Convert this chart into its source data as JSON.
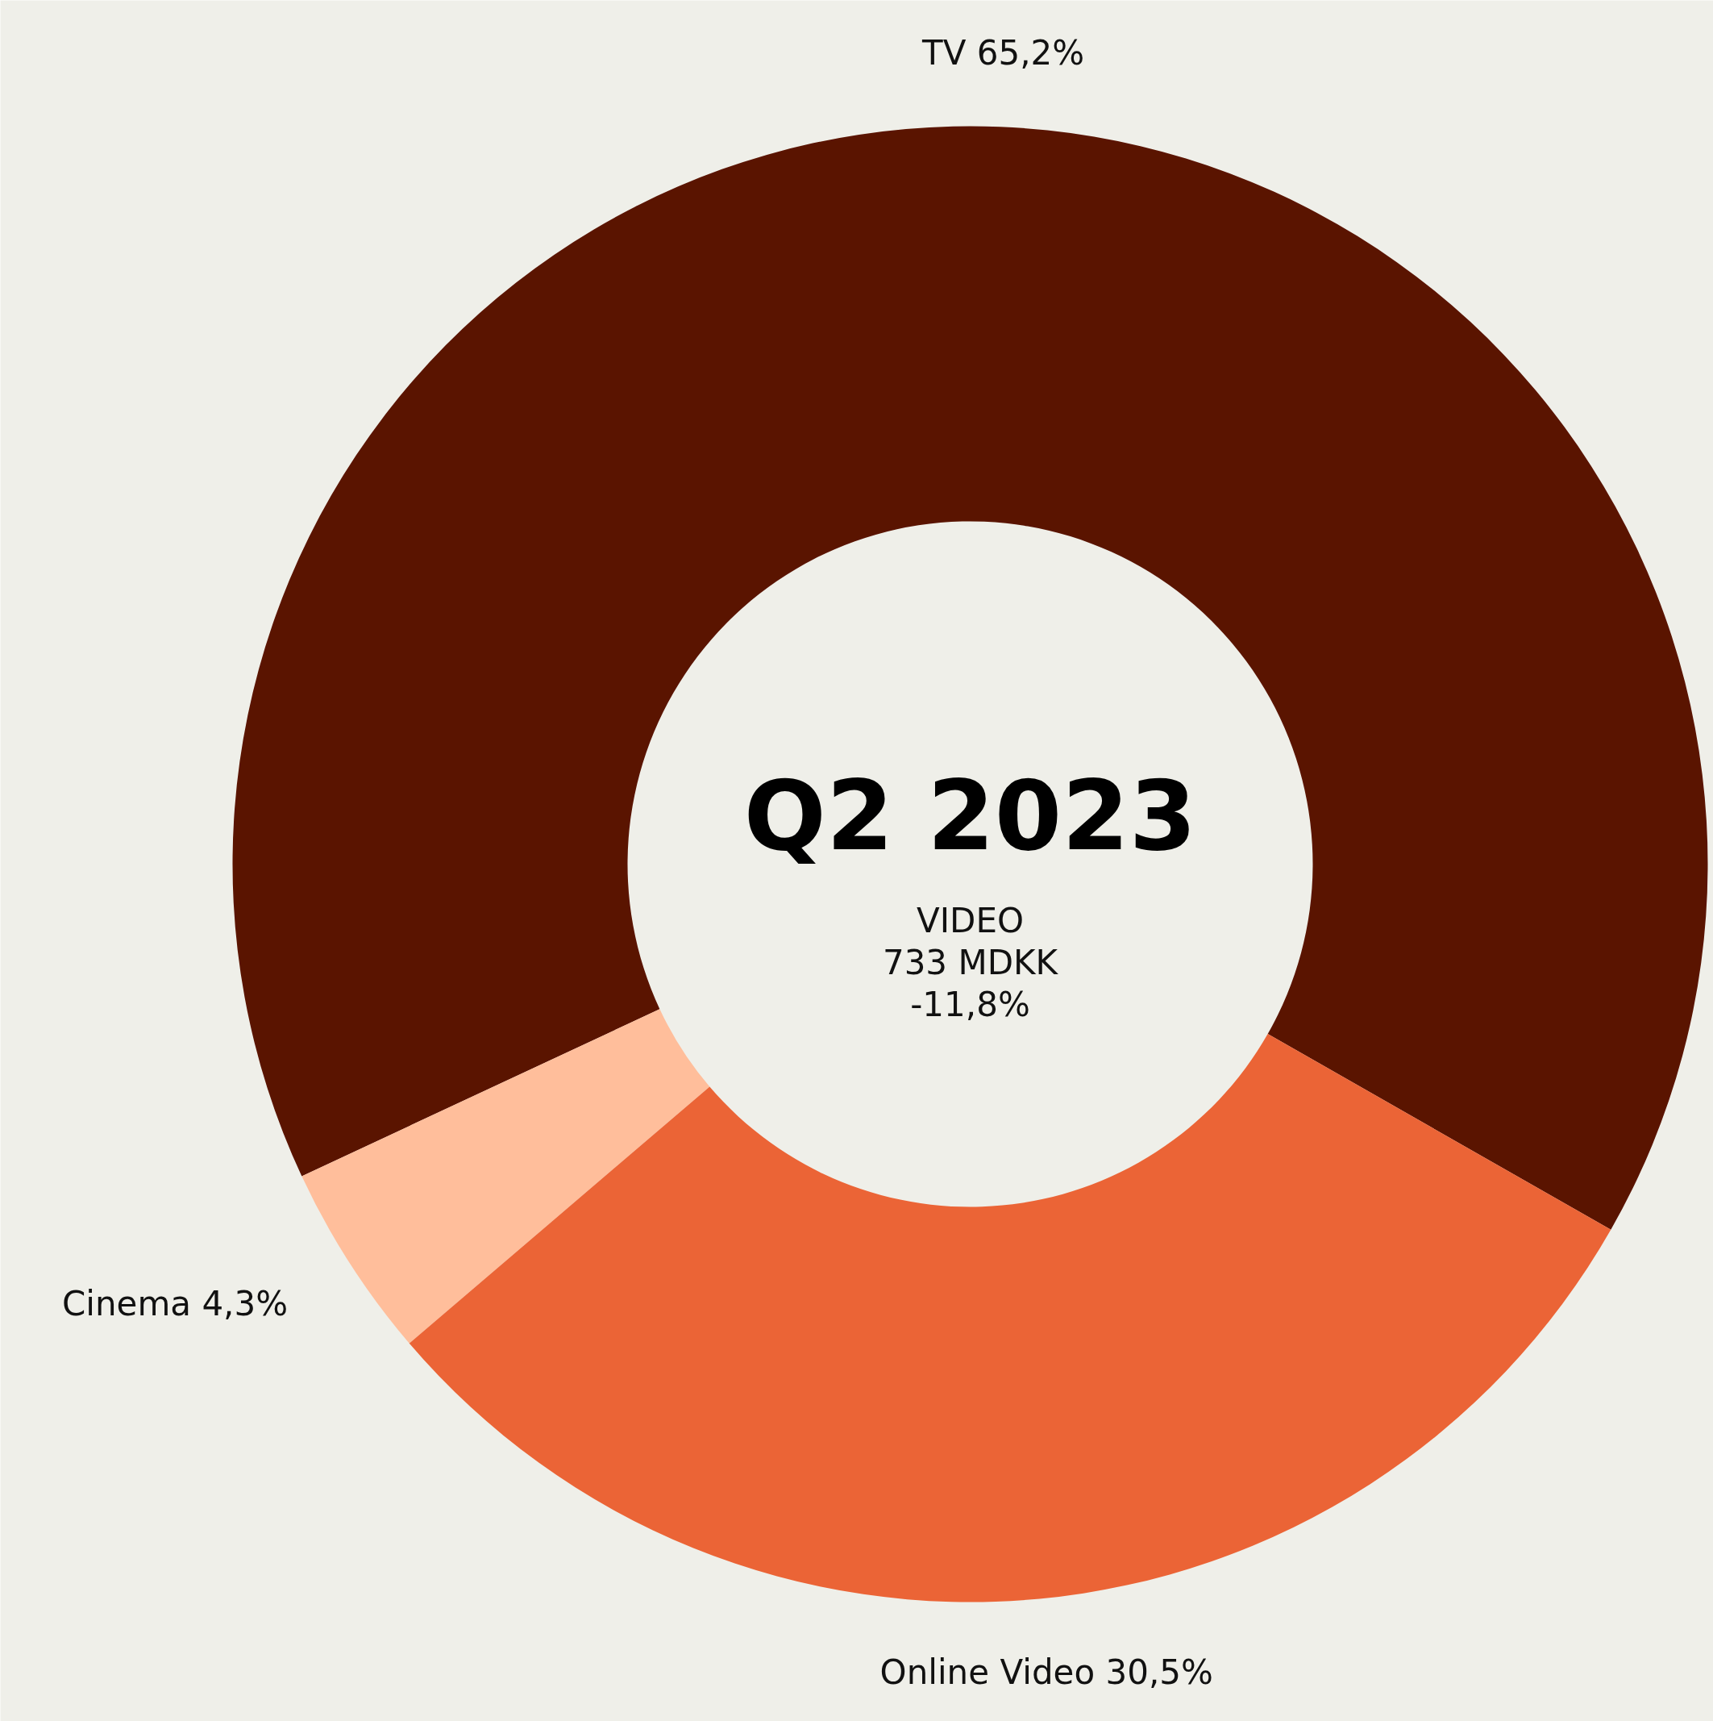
{
  "chart_data": {
    "type": "donut",
    "title": "Q2 2023",
    "annotations": [
      "VIDEO",
      "733 MDKK",
      "-11,8%"
    ],
    "categories": [
      "TV",
      "Cinema",
      "Online Video"
    ],
    "values": [
      65.2,
      4.3,
      30.5
    ],
    "value_labels": [
      "65,2%",
      "4,3%",
      "30,5%"
    ],
    "colors": [
      "#5a1400",
      "#ffbe9b",
      "#eb6436"
    ],
    "legend": false
  }
}
